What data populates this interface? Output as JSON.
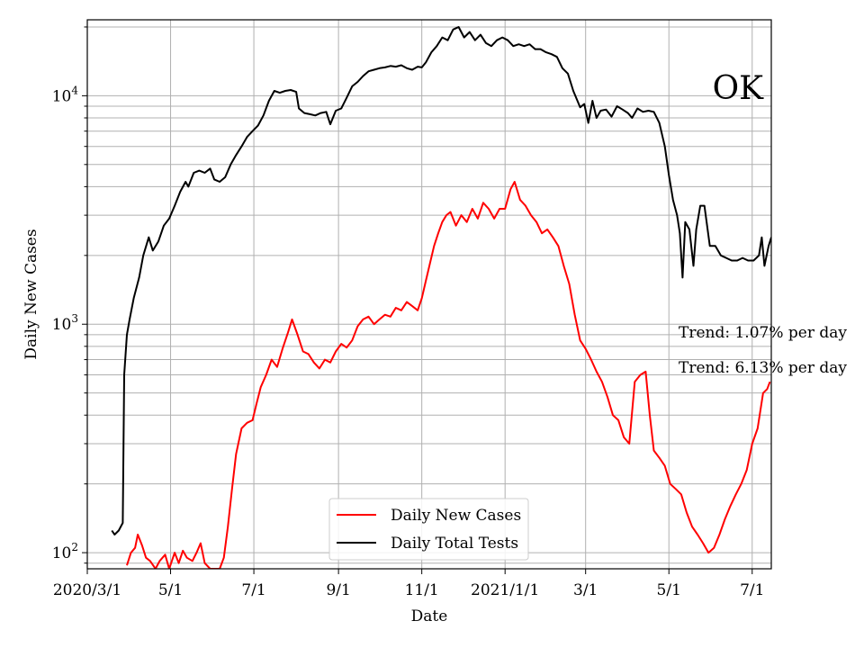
{
  "chart_data": {
    "type": "line",
    "annotation": "OK",
    "xlabel": "Date",
    "ylabel": "Daily New Cases",
    "yscale": "log",
    "ylim": [
      85,
      21500
    ],
    "xlim": [
      "2020-03-01",
      "2021-07-15"
    ],
    "grid": true,
    "x_ticks": [
      {
        "date": "2020-03-01",
        "label": "2020/3/1"
      },
      {
        "date": "2020-05-01",
        "label": "5/1"
      },
      {
        "date": "2020-07-01",
        "label": "7/1"
      },
      {
        "date": "2020-09-01",
        "label": "9/1"
      },
      {
        "date": "2020-11-01",
        "label": "11/1"
      },
      {
        "date": "2021-01-01",
        "label": "2021/1/1"
      },
      {
        "date": "2021-03-01",
        "label": "3/1"
      },
      {
        "date": "2021-05-01",
        "label": "5/1"
      },
      {
        "date": "2021-07-01",
        "label": "7/1"
      }
    ],
    "y_ticks": [
      {
        "value": 100,
        "base": "10",
        "exp": "2"
      },
      {
        "value": 1000,
        "base": "10",
        "exp": "3"
      },
      {
        "value": 10000,
        "base": "10",
        "exp": "4"
      }
    ],
    "trend_labels": [
      "Trend: 1.07% per day",
      "Trend: 6.13% per day"
    ],
    "legend_position": "lower center",
    "series": [
      {
        "name": "Daily New Cases",
        "color": "#ff0000",
        "points": [
          [
            "2020-03-30",
            88
          ],
          [
            "2020-04-02",
            100
          ],
          [
            "2020-04-05",
            105
          ],
          [
            "2020-04-07",
            120
          ],
          [
            "2020-04-10",
            108
          ],
          [
            "2020-04-13",
            95
          ],
          [
            "2020-04-16",
            92
          ],
          [
            "2020-04-20",
            85
          ],
          [
            "2020-04-23",
            92
          ],
          [
            "2020-04-27",
            98
          ],
          [
            "2020-04-30",
            85
          ],
          [
            "2020-05-04",
            100
          ],
          [
            "2020-05-07",
            90
          ],
          [
            "2020-05-10",
            102
          ],
          [
            "2020-05-13",
            95
          ],
          [
            "2020-05-17",
            92
          ],
          [
            "2020-05-20",
            100
          ],
          [
            "2020-05-23",
            110
          ],
          [
            "2020-05-26",
            90
          ],
          [
            "2020-05-30",
            85
          ],
          [
            "2020-06-02",
            85
          ],
          [
            "2020-06-06",
            85
          ],
          [
            "2020-06-09",
            95
          ],
          [
            "2020-06-12",
            130
          ],
          [
            "2020-06-15",
            190
          ],
          [
            "2020-06-18",
            270
          ],
          [
            "2020-06-22",
            350
          ],
          [
            "2020-06-26",
            370
          ],
          [
            "2020-06-30",
            380
          ],
          [
            "2020-07-03",
            450
          ],
          [
            "2020-07-06",
            530
          ],
          [
            "2020-07-10",
            600
          ],
          [
            "2020-07-14",
            700
          ],
          [
            "2020-07-18",
            650
          ],
          [
            "2020-07-22",
            780
          ],
          [
            "2020-07-26",
            920
          ],
          [
            "2020-07-29",
            1050
          ],
          [
            "2020-08-02",
            900
          ],
          [
            "2020-08-06",
            760
          ],
          [
            "2020-08-10",
            740
          ],
          [
            "2020-08-14",
            680
          ],
          [
            "2020-08-18",
            640
          ],
          [
            "2020-08-22",
            700
          ],
          [
            "2020-08-26",
            680
          ],
          [
            "2020-08-30",
            760
          ],
          [
            "2020-09-03",
            820
          ],
          [
            "2020-09-07",
            790
          ],
          [
            "2020-09-11",
            850
          ],
          [
            "2020-09-15",
            980
          ],
          [
            "2020-09-19",
            1050
          ],
          [
            "2020-09-23",
            1080
          ],
          [
            "2020-09-27",
            1000
          ],
          [
            "2020-10-01",
            1050
          ],
          [
            "2020-10-05",
            1100
          ],
          [
            "2020-10-09",
            1080
          ],
          [
            "2020-10-13",
            1180
          ],
          [
            "2020-10-17",
            1150
          ],
          [
            "2020-10-21",
            1250
          ],
          [
            "2020-10-25",
            1200
          ],
          [
            "2020-10-29",
            1150
          ],
          [
            "2020-11-01",
            1300
          ],
          [
            "2020-11-04",
            1550
          ],
          [
            "2020-11-07",
            1850
          ],
          [
            "2020-11-10",
            2200
          ],
          [
            "2020-11-13",
            2500
          ],
          [
            "2020-11-16",
            2800
          ],
          [
            "2020-11-19",
            3000
          ],
          [
            "2020-11-22",
            3100
          ],
          [
            "2020-11-26",
            2700
          ],
          [
            "2020-11-30",
            3000
          ],
          [
            "2020-12-04",
            2800
          ],
          [
            "2020-12-08",
            3200
          ],
          [
            "2020-12-12",
            2900
          ],
          [
            "2020-12-16",
            3400
          ],
          [
            "2020-12-20",
            3200
          ],
          [
            "2020-12-24",
            2900
          ],
          [
            "2020-12-28",
            3200
          ],
          [
            "2021-01-01",
            3200
          ],
          [
            "2021-01-05",
            3900
          ],
          [
            "2021-01-08",
            4200
          ],
          [
            "2021-01-12",
            3500
          ],
          [
            "2021-01-16",
            3300
          ],
          [
            "2021-01-20",
            3000
          ],
          [
            "2021-01-24",
            2800
          ],
          [
            "2021-01-28",
            2500
          ],
          [
            "2021-02-01",
            2600
          ],
          [
            "2021-02-05",
            2400
          ],
          [
            "2021-02-09",
            2200
          ],
          [
            "2021-02-13",
            1800
          ],
          [
            "2021-02-17",
            1500
          ],
          [
            "2021-02-21",
            1100
          ],
          [
            "2021-02-25",
            850
          ],
          [
            "2021-03-01",
            780
          ],
          [
            "2021-03-05",
            700
          ],
          [
            "2021-03-09",
            620
          ],
          [
            "2021-03-13",
            560
          ],
          [
            "2021-03-17",
            480
          ],
          [
            "2021-03-21",
            400
          ],
          [
            "2021-03-25",
            380
          ],
          [
            "2021-03-29",
            320
          ],
          [
            "2021-04-02",
            300
          ],
          [
            "2021-04-06",
            560
          ],
          [
            "2021-04-10",
            600
          ],
          [
            "2021-04-14",
            620
          ],
          [
            "2021-04-17",
            400
          ],
          [
            "2021-04-20",
            280
          ],
          [
            "2021-04-24",
            260
          ],
          [
            "2021-04-28",
            240
          ],
          [
            "2021-05-02",
            200
          ],
          [
            "2021-05-06",
            190
          ],
          [
            "2021-05-10",
            180
          ],
          [
            "2021-05-14",
            150
          ],
          [
            "2021-05-18",
            130
          ],
          [
            "2021-05-22",
            120
          ],
          [
            "2021-05-26",
            110
          ],
          [
            "2021-05-30",
            100
          ],
          [
            "2021-06-03",
            105
          ],
          [
            "2021-06-07",
            120
          ],
          [
            "2021-06-11",
            140
          ],
          [
            "2021-06-15",
            160
          ],
          [
            "2021-06-19",
            180
          ],
          [
            "2021-06-23",
            200
          ],
          [
            "2021-06-27",
            230
          ],
          [
            "2021-07-01",
            300
          ],
          [
            "2021-07-05",
            350
          ],
          [
            "2021-07-09",
            500
          ],
          [
            "2021-07-12",
            520
          ],
          [
            "2021-07-14",
            560
          ]
        ]
      },
      {
        "name": "Daily Total Tests",
        "color": "#000000",
        "points": [
          [
            "2020-03-19",
            125
          ],
          [
            "2020-03-21",
            120
          ],
          [
            "2020-03-24",
            125
          ],
          [
            "2020-03-27",
            135
          ],
          [
            "2020-03-28",
            600
          ],
          [
            "2020-03-30",
            900
          ],
          [
            "2020-04-01",
            1050
          ],
          [
            "2020-04-04",
            1300
          ],
          [
            "2020-04-08",
            1600
          ],
          [
            "2020-04-11",
            2000
          ],
          [
            "2020-04-15",
            2400
          ],
          [
            "2020-04-18",
            2100
          ],
          [
            "2020-04-22",
            2300
          ],
          [
            "2020-04-26",
            2700
          ],
          [
            "2020-04-30",
            2900
          ],
          [
            "2020-05-04",
            3300
          ],
          [
            "2020-05-08",
            3800
          ],
          [
            "2020-05-12",
            4200
          ],
          [
            "2020-05-14",
            4000
          ],
          [
            "2020-05-18",
            4600
          ],
          [
            "2020-05-22",
            4700
          ],
          [
            "2020-05-26",
            4600
          ],
          [
            "2020-05-30",
            4800
          ],
          [
            "2020-06-02",
            4300
          ],
          [
            "2020-06-06",
            4200
          ],
          [
            "2020-06-10",
            4400
          ],
          [
            "2020-06-14",
            5000
          ],
          [
            "2020-06-18",
            5500
          ],
          [
            "2020-06-22",
            6000
          ],
          [
            "2020-06-26",
            6600
          ],
          [
            "2020-06-30",
            7000
          ],
          [
            "2020-07-04",
            7400
          ],
          [
            "2020-07-08",
            8200
          ],
          [
            "2020-07-12",
            9500
          ],
          [
            "2020-07-16",
            10500
          ],
          [
            "2020-07-20",
            10300
          ],
          [
            "2020-07-24",
            10500
          ],
          [
            "2020-07-28",
            10600
          ],
          [
            "2020-08-01",
            10400
          ],
          [
            "2020-08-03",
            8800
          ],
          [
            "2020-08-07",
            8400
          ],
          [
            "2020-08-11",
            8300
          ],
          [
            "2020-08-15",
            8200
          ],
          [
            "2020-08-19",
            8400
          ],
          [
            "2020-08-23",
            8500
          ],
          [
            "2020-08-26",
            7500
          ],
          [
            "2020-08-30",
            8600
          ],
          [
            "2020-09-03",
            8800
          ],
          [
            "2020-09-07",
            9800
          ],
          [
            "2020-09-11",
            11000
          ],
          [
            "2020-09-15",
            11500
          ],
          [
            "2020-09-19",
            12200
          ],
          [
            "2020-09-23",
            12800
          ],
          [
            "2020-09-27",
            13000
          ],
          [
            "2020-10-01",
            13200
          ],
          [
            "2020-10-05",
            13300
          ],
          [
            "2020-10-09",
            13500
          ],
          [
            "2020-10-13",
            13400
          ],
          [
            "2020-10-17",
            13600
          ],
          [
            "2020-10-21",
            13200
          ],
          [
            "2020-10-25",
            13000
          ],
          [
            "2020-10-29",
            13400
          ],
          [
            "2020-11-01",
            13300
          ],
          [
            "2020-11-04",
            14000
          ],
          [
            "2020-11-08",
            15500
          ],
          [
            "2020-11-12",
            16500
          ],
          [
            "2020-11-16",
            18000
          ],
          [
            "2020-11-20",
            17500
          ],
          [
            "2020-11-24",
            19500
          ],
          [
            "2020-11-28",
            20000
          ],
          [
            "2020-12-02",
            18000
          ],
          [
            "2020-12-06",
            19000
          ],
          [
            "2020-12-10",
            17500
          ],
          [
            "2020-12-14",
            18500
          ],
          [
            "2020-12-18",
            17000
          ],
          [
            "2020-12-22",
            16500
          ],
          [
            "2020-12-26",
            17500
          ],
          [
            "2020-12-30",
            18000
          ],
          [
            "2021-01-03",
            17500
          ],
          [
            "2021-01-07",
            16500
          ],
          [
            "2021-01-11",
            16800
          ],
          [
            "2021-01-15",
            16500
          ],
          [
            "2021-01-19",
            16800
          ],
          [
            "2021-01-23",
            16000
          ],
          [
            "2021-01-27",
            16000
          ],
          [
            "2021-01-31",
            15500
          ],
          [
            "2021-02-04",
            15200
          ],
          [
            "2021-02-08",
            14800
          ],
          [
            "2021-02-12",
            13200
          ],
          [
            "2021-02-16",
            12500
          ],
          [
            "2021-02-20",
            10500
          ],
          [
            "2021-02-23",
            9500
          ],
          [
            "2021-02-25",
            8900
          ],
          [
            "2021-02-28",
            9200
          ],
          [
            "2021-03-03",
            7600
          ],
          [
            "2021-03-06",
            9500
          ],
          [
            "2021-03-09",
            8000
          ],
          [
            "2021-03-12",
            8600
          ],
          [
            "2021-03-16",
            8700
          ],
          [
            "2021-03-20",
            8100
          ],
          [
            "2021-03-24",
            9000
          ],
          [
            "2021-03-28",
            8700
          ],
          [
            "2021-04-01",
            8400
          ],
          [
            "2021-04-04",
            8000
          ],
          [
            "2021-04-08",
            8800
          ],
          [
            "2021-04-12",
            8500
          ],
          [
            "2021-04-16",
            8600
          ],
          [
            "2021-04-20",
            8500
          ],
          [
            "2021-04-24",
            7600
          ],
          [
            "2021-04-28",
            6000
          ],
          [
            "2021-05-01",
            4500
          ],
          [
            "2021-05-04",
            3500
          ],
          [
            "2021-05-07",
            3000
          ],
          [
            "2021-05-09",
            2500
          ],
          [
            "2021-05-11",
            1600
          ],
          [
            "2021-05-13",
            2800
          ],
          [
            "2021-05-16",
            2600
          ],
          [
            "2021-05-19",
            1800
          ],
          [
            "2021-05-21",
            2600
          ],
          [
            "2021-05-24",
            3300
          ],
          [
            "2021-05-27",
            3300
          ],
          [
            "2021-05-31",
            2200
          ],
          [
            "2021-06-04",
            2200
          ],
          [
            "2021-06-08",
            2000
          ],
          [
            "2021-06-12",
            1950
          ],
          [
            "2021-06-16",
            1900
          ],
          [
            "2021-06-20",
            1900
          ],
          [
            "2021-06-24",
            1950
          ],
          [
            "2021-06-28",
            1900
          ],
          [
            "2021-07-02",
            1900
          ],
          [
            "2021-07-06",
            2000
          ],
          [
            "2021-07-08",
            2400
          ],
          [
            "2021-07-10",
            1800
          ],
          [
            "2021-07-13",
            2200
          ],
          [
            "2021-07-15",
            2400
          ]
        ]
      }
    ]
  }
}
